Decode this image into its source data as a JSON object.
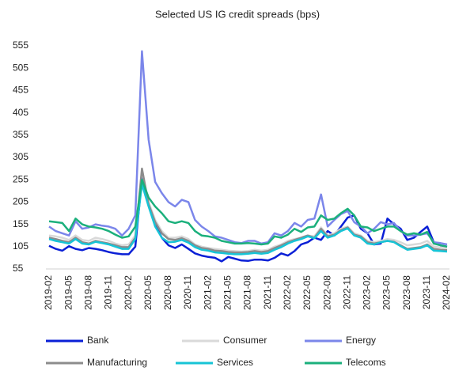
{
  "chart_data": {
    "type": "line",
    "title": "Selected US IG credit spreads (bps)",
    "categories": [
      "2019-02",
      null,
      null,
      "2019-05",
      null,
      null,
      "2019-08",
      null,
      null,
      "2019-11",
      null,
      null,
      "2020-02",
      null,
      null,
      "2020-05",
      null,
      null,
      "2020-08",
      null,
      null,
      "2020-11",
      null,
      null,
      "2021-02",
      null,
      null,
      "2021-05",
      null,
      null,
      "2021-08",
      null,
      null,
      "2021-11",
      null,
      null,
      "2022-02",
      null,
      null,
      "2022-05",
      null,
      null,
      "2022-08",
      null,
      null,
      "2022-11",
      null,
      null,
      "2023-02",
      null,
      null,
      "2023-05",
      null,
      null,
      "2023-08",
      null,
      null,
      "2023-11",
      null,
      null,
      "2024-02"
    ],
    "series": [
      {
        "name": "Bank",
        "color": "#0a1fd6",
        "values": [
          107,
          100,
          96,
          106,
          100,
          97,
          102,
          100,
          97,
          93,
          90,
          88,
          88,
          105,
          260,
          200,
          155,
          125,
          108,
          102,
          110,
          100,
          90,
          85,
          82,
          80,
          72,
          82,
          78,
          74,
          73,
          76,
          76,
          74,
          80,
          90,
          85,
          95,
          110,
          115,
          125,
          120,
          140,
          130,
          150,
          170,
          175,
          145,
          135,
          110,
          112,
          168,
          155,
          145,
          120,
          125,
          138,
          150,
          115,
          108,
          105
        ]
      },
      {
        "name": "Consumer",
        "color": "#d9d9d9",
        "values": [
          130,
          128,
          125,
          120,
          130,
          120,
          118,
          125,
          122,
          118,
          112,
          108,
          110,
          130,
          275,
          205,
          165,
          140,
          125,
          125,
          128,
          122,
          110,
          105,
          102,
          100,
          98,
          96,
          95,
          94,
          95,
          98,
          96,
          98,
          105,
          110,
          118,
          122,
          125,
          130,
          128,
          148,
          130,
          135,
          145,
          150,
          135,
          130,
          118,
          115,
          118,
          122,
          120,
          115,
          108,
          110,
          112,
          118,
          105,
          103,
          102
        ]
      },
      {
        "name": "Energy",
        "color": "#7b86ea",
        "values": [
          150,
          140,
          135,
          130,
          162,
          145,
          148,
          155,
          152,
          150,
          145,
          130,
          145,
          175,
          543,
          345,
          250,
          225,
          205,
          195,
          210,
          205,
          165,
          150,
          140,
          128,
          125,
          120,
          115,
          113,
          118,
          118,
          112,
          115,
          135,
          130,
          140,
          158,
          150,
          165,
          168,
          222,
          150,
          165,
          178,
          185,
          160,
          150,
          135,
          145,
          160,
          155,
          158,
          140,
          130,
          130,
          132,
          135,
          115,
          113,
          110
        ]
      },
      {
        "name": "Manufacturing",
        "color": "#8c8c8c",
        "values": [
          125,
          122,
          118,
          115,
          125,
          115,
          112,
          118,
          115,
          112,
          108,
          104,
          104,
          125,
          280,
          200,
          160,
          135,
          122,
          120,
          124,
          118,
          108,
          102,
          100,
          96,
          95,
          93,
          92,
          92,
          93,
          95,
          93,
          95,
          102,
          108,
          115,
          120,
          125,
          130,
          125,
          145,
          128,
          132,
          142,
          148,
          132,
          128,
          115,
          112,
          115,
          118,
          116,
          108,
          100,
          102,
          104,
          110,
          100,
          98,
          97
        ]
      },
      {
        "name": "Services",
        "color": "#17c4d6",
        "values": [
          122,
          118,
          115,
          112,
          122,
          112,
          110,
          116,
          113,
          110,
          105,
          100,
          100,
          122,
          245,
          195,
          150,
          125,
          115,
          116,
          120,
          114,
          104,
          98,
          96,
          92,
          91,
          89,
          88,
          88,
          89,
          91,
          89,
          91,
          98,
          104,
          112,
          118,
          122,
          128,
          124,
          140,
          125,
          130,
          140,
          146,
          130,
          125,
          112,
          110,
          115,
          118,
          115,
          106,
          98,
          100,
          102,
          108,
          96,
          95,
          94
        ]
      },
      {
        "name": "Telecoms",
        "color": "#1bb07c",
        "values": [
          162,
          160,
          158,
          140,
          168,
          155,
          150,
          148,
          145,
          140,
          132,
          125,
          128,
          150,
          255,
          215,
          195,
          180,
          162,
          158,
          162,
          158,
          140,
          130,
          128,
          125,
          118,
          115,
          112,
          112,
          113,
          112,
          110,
          112,
          128,
          125,
          132,
          145,
          138,
          148,
          150,
          175,
          165,
          168,
          180,
          190,
          175,
          150,
          148,
          140,
          145,
          150,
          150,
          140,
          132,
          135,
          132,
          138,
          112,
          108,
          105
        ]
      }
    ],
    "ylim": [
      55,
      580
    ],
    "yticks": [
      55,
      105,
      155,
      205,
      255,
      305,
      355,
      405,
      455,
      505,
      555
    ],
    "grid": false,
    "legend": "bottom"
  }
}
